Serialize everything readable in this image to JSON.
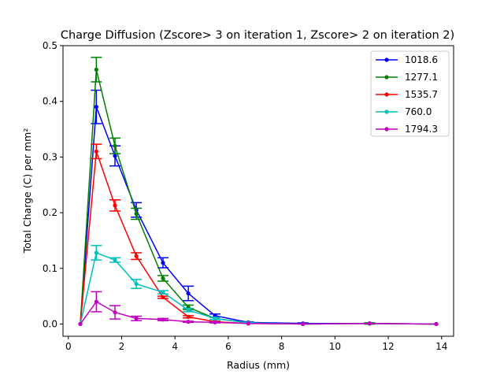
{
  "chart_data": {
    "type": "line",
    "title": "Charge Diffusion (Zscore> 3 on iteration 1, Zscore> 2 on iteration 2)",
    "xlabel": "Radius (mm)",
    "ylabel": "Total Charge (C) per mm²",
    "xlim": [
      -0.2,
      14.45
    ],
    "ylim": [
      -0.022,
      0.5
    ],
    "x_ticks": [
      0,
      2,
      4,
      6,
      8,
      10,
      12,
      14
    ],
    "x_tick_labels": [
      "0",
      "2",
      "4",
      "6",
      "8",
      "10",
      "12",
      "14"
    ],
    "y_ticks": [
      0.0,
      0.1,
      0.2,
      0.3,
      0.4,
      0.5
    ],
    "y_tick_labels": [
      "0.0",
      "0.1",
      "0.2",
      "0.3",
      "0.4",
      "0.5"
    ],
    "grid": false,
    "legend_position": "top-right",
    "x": [
      0.45,
      1.05,
      1.75,
      2.55,
      3.55,
      4.5,
      5.5,
      6.75,
      8.8,
      11.3,
      13.8
    ],
    "series": [
      {
        "name": "1018.6",
        "color": "#0000ff",
        "values": [
          0.0,
          0.39,
          0.302,
          0.205,
          0.11,
          0.055,
          0.015,
          0.003,
          0.001,
          0.001,
          0.0
        ],
        "errors": [
          0.0,
          0.03,
          0.018,
          0.013,
          0.009,
          0.013,
          0.003,
          0.001,
          0.001,
          0.001,
          0.0
        ]
      },
      {
        "name": "1277.1",
        "color": "#008000",
        "values": [
          0.0,
          0.457,
          0.32,
          0.198,
          0.082,
          0.03,
          0.01,
          0.002,
          0.0,
          0.001,
          0.0
        ],
        "errors": [
          0.0,
          0.022,
          0.014,
          0.01,
          0.005,
          0.004,
          0.002,
          0.001,
          0.0,
          0.001,
          0.0
        ]
      },
      {
        "name": "1535.7",
        "color": "#ff0000",
        "values": [
          0.0,
          0.31,
          0.213,
          0.122,
          0.048,
          0.013,
          0.004,
          0.001,
          0.0,
          0.001,
          0.0
        ],
        "errors": [
          0.0,
          0.013,
          0.01,
          0.006,
          0.002,
          0.002,
          0.001,
          0.0,
          0.0,
          0.0,
          0.0
        ]
      },
      {
        "name": "760.0",
        "color": "#00bfbf",
        "values": [
          0.0,
          0.128,
          0.115,
          0.072,
          0.057,
          0.025,
          0.01,
          0.002,
          0.0,
          0.001,
          0.0
        ],
        "errors": [
          0.0,
          0.013,
          0.004,
          0.008,
          0.003,
          0.003,
          0.002,
          0.001,
          0.0,
          0.0,
          0.0
        ]
      },
      {
        "name": "1794.3",
        "color": "#bf00bf",
        "values": [
          0.0,
          0.04,
          0.021,
          0.01,
          0.008,
          0.004,
          0.003,
          0.001,
          0.0,
          0.001,
          0.0
        ],
        "errors": [
          0.0,
          0.018,
          0.012,
          0.004,
          0.002,
          0.001,
          0.001,
          0.0,
          0.0,
          0.0,
          0.0
        ]
      }
    ]
  }
}
